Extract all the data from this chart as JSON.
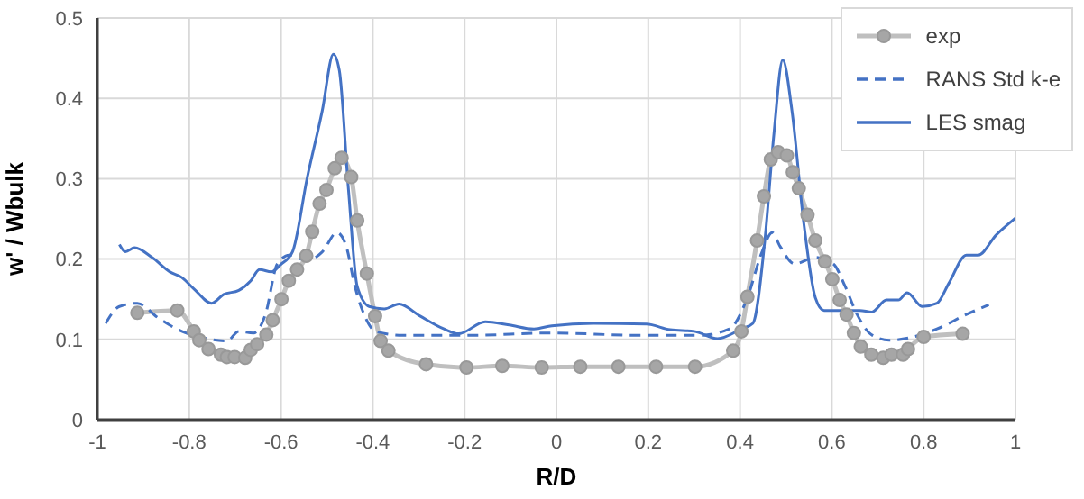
{
  "chart_data": {
    "type": "line",
    "xlabel": "R/D",
    "ylabel": "w' / Wbulk",
    "xlim": [
      -1,
      1
    ],
    "xticks": [
      -1,
      -0.8,
      -0.6,
      -0.4,
      -0.2,
      0,
      0.2,
      0.4,
      0.6,
      0.8,
      1
    ],
    "ylim": [
      0,
      0.5
    ],
    "yticks": [
      0,
      0.1,
      0.2,
      0.3,
      0.4,
      0.5
    ],
    "grid": true,
    "legend": "top right",
    "series": [
      {
        "name": "exp",
        "color": "#bfbfbf",
        "marker": "circle",
        "line_style": "solid",
        "x": [
          -0.913,
          -0.826,
          -0.79,
          -0.778,
          -0.758,
          -0.731,
          -0.718,
          -0.701,
          -0.678,
          -0.666,
          -0.652,
          -0.632,
          -0.618,
          -0.599,
          -0.583,
          -0.565,
          -0.545,
          -0.532,
          -0.516,
          -0.501,
          -0.483,
          -0.468,
          -0.447,
          -0.434,
          -0.413,
          -0.395,
          -0.383,
          -0.366,
          -0.284,
          -0.196,
          -0.118,
          -0.032,
          0.052,
          0.135,
          0.217,
          0.302,
          0.385,
          0.403,
          0.416,
          0.437,
          0.452,
          0.467,
          0.483,
          0.502,
          0.515,
          0.528,
          0.547,
          0.564,
          0.585,
          0.601,
          0.617,
          0.632,
          0.648,
          0.663,
          0.686,
          0.712,
          0.73,
          0.755,
          0.766,
          0.8,
          0.885
        ],
        "values": [
          0.133,
          0.136,
          0.11,
          0.099,
          0.088,
          0.081,
          0.078,
          0.078,
          0.077,
          0.087,
          0.094,
          0.106,
          0.124,
          0.15,
          0.173,
          0.187,
          0.204,
          0.234,
          0.269,
          0.286,
          0.313,
          0.326,
          0.302,
          0.248,
          0.182,
          0.129,
          0.098,
          0.086,
          0.069,
          0.065,
          0.067,
          0.065,
          0.066,
          0.066,
          0.066,
          0.066,
          0.086,
          0.11,
          0.153,
          0.223,
          0.278,
          0.324,
          0.333,
          0.329,
          0.308,
          0.288,
          0.255,
          0.223,
          0.197,
          0.175,
          0.149,
          0.131,
          0.108,
          0.091,
          0.081,
          0.077,
          0.081,
          0.081,
          0.088,
          0.103,
          0.107
        ]
      },
      {
        "name": "RANS Std k-e",
        "color": "#4472c4",
        "marker": "none",
        "line_style": "dashed",
        "x": [
          -0.982,
          -0.952,
          -0.913,
          -0.868,
          -0.816,
          -0.777,
          -0.718,
          -0.692,
          -0.66,
          -0.634,
          -0.608,
          -0.582,
          -0.543,
          -0.51,
          -0.478,
          -0.458,
          -0.439,
          -0.419,
          -0.394,
          -0.335,
          -0.192,
          -0.01,
          0.183,
          0.312,
          0.377,
          0.416,
          0.448,
          0.47,
          0.487,
          0.519,
          0.564,
          0.603,
          0.629,
          0.655,
          0.686,
          0.725,
          0.777,
          0.829,
          0.893,
          0.942
        ],
        "values": [
          0.12,
          0.141,
          0.145,
          0.127,
          0.11,
          0.103,
          0.098,
          0.11,
          0.108,
          0.131,
          0.194,
          0.205,
          0.198,
          0.209,
          0.233,
          0.216,
          0.166,
          0.131,
          0.11,
          0.105,
          0.105,
          0.108,
          0.105,
          0.105,
          0.113,
          0.152,
          0.209,
          0.233,
          0.216,
          0.194,
          0.202,
          0.194,
          0.166,
          0.131,
          0.106,
          0.099,
          0.103,
          0.113,
          0.131,
          0.143
        ]
      },
      {
        "name": "LES smag",
        "color": "#4472c4",
        "marker": "none",
        "line_style": "solid",
        "x": [
          -0.952,
          -0.939,
          -0.919,
          -0.881,
          -0.842,
          -0.816,
          -0.79,
          -0.751,
          -0.725,
          -0.692,
          -0.666,
          -0.647,
          -0.621,
          -0.601,
          -0.575,
          -0.543,
          -0.51,
          -0.486,
          -0.473,
          -0.453,
          -0.434,
          -0.408,
          -0.375,
          -0.343,
          -0.297,
          -0.245,
          -0.213,
          -0.155,
          -0.103,
          -0.049,
          -0.01,
          0.08,
          0.196,
          0.248,
          0.3,
          0.351,
          0.403,
          0.428,
          0.454,
          0.474,
          0.493,
          0.513,
          0.539,
          0.564,
          0.583,
          0.635,
          0.661,
          0.687,
          0.719,
          0.745,
          0.764,
          0.797,
          0.829,
          0.855,
          0.893,
          0.919,
          0.958,
          1.0
        ],
        "values": [
          0.218,
          0.209,
          0.214,
          0.202,
          0.184,
          0.177,
          0.163,
          0.145,
          0.156,
          0.161,
          0.173,
          0.187,
          0.184,
          0.193,
          0.209,
          0.301,
          0.385,
          0.455,
          0.435,
          0.286,
          0.166,
          0.141,
          0.138,
          0.144,
          0.129,
          0.113,
          0.107,
          0.122,
          0.118,
          0.113,
          0.117,
          0.12,
          0.119,
          0.112,
          0.11,
          0.101,
          0.113,
          0.12,
          0.223,
          0.357,
          0.448,
          0.385,
          0.244,
          0.152,
          0.136,
          0.136,
          0.136,
          0.134,
          0.149,
          0.149,
          0.158,
          0.141,
          0.145,
          0.17,
          0.205,
          0.205,
          0.23,
          0.251
        ]
      }
    ]
  }
}
